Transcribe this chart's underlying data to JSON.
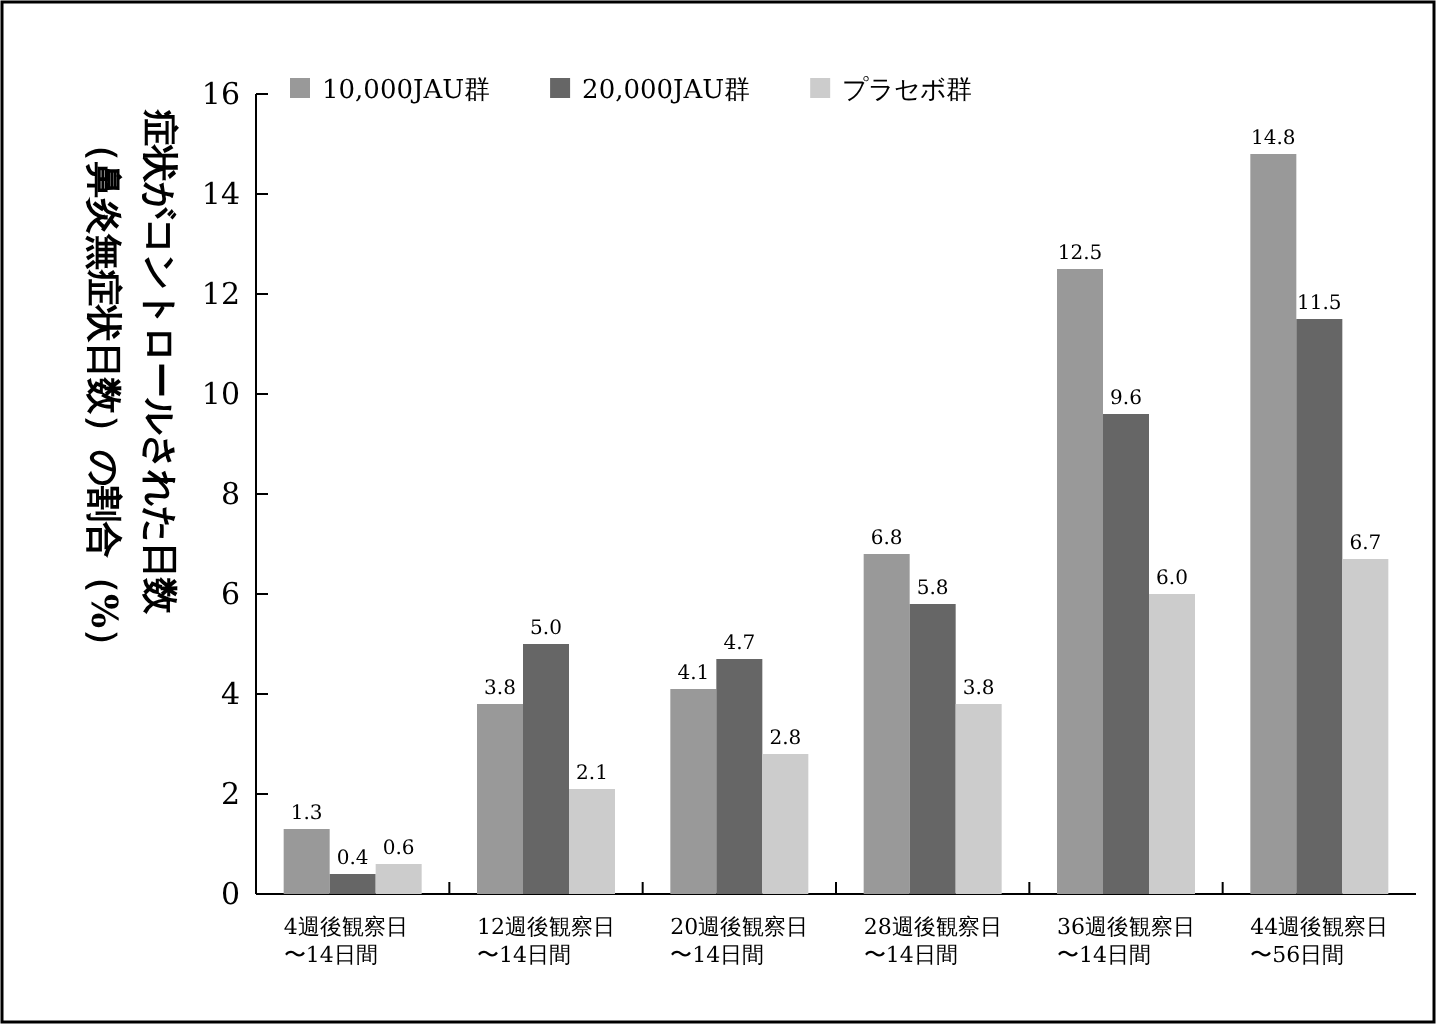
{
  "chart_data": {
    "type": "bar",
    "ylabel": "症状がコントロールされた日数（鼻炎無症状日数）の割合（%）",
    "categories": [
      "4週後観察日〜14日間",
      "12週後観察日〜14日間",
      "20週後観察日〜14日間",
      "28週後観察日〜14日間",
      "36週後観察日〜14日間",
      "44週後観察日〜56日間"
    ],
    "series": [
      {
        "name": "10,000JAU群",
        "color": "#999999",
        "values": [
          1.3,
          3.8,
          4.1,
          6.8,
          12.5,
          14.8
        ],
        "value_labels": [
          "1.3",
          "3.8",
          "4.1",
          "6.8",
          "12.5",
          "14.8"
        ]
      },
      {
        "name": "20,000JAU群",
        "color": "#666666",
        "values": [
          0.4,
          5.0,
          4.7,
          5.8,
          9.6,
          11.5
        ],
        "value_labels": [
          "0.4",
          "5.0",
          "4.7",
          "5.8",
          "9.6",
          "11.5"
        ]
      },
      {
        "name": "プラセボ群",
        "color": "#cccccc",
        "values": [
          0.6,
          2.1,
          2.8,
          3.8,
          6.0,
          6.7
        ],
        "value_labels": [
          "0.6",
          "2.1",
          "2.8",
          "3.8",
          "6.0",
          "6.7"
        ]
      }
    ],
    "ylim": [
      0,
      16
    ],
    "yticks": [
      0,
      2,
      4,
      6,
      8,
      10,
      12,
      14,
      16
    ],
    "legend": "top",
    "grid": false
  }
}
